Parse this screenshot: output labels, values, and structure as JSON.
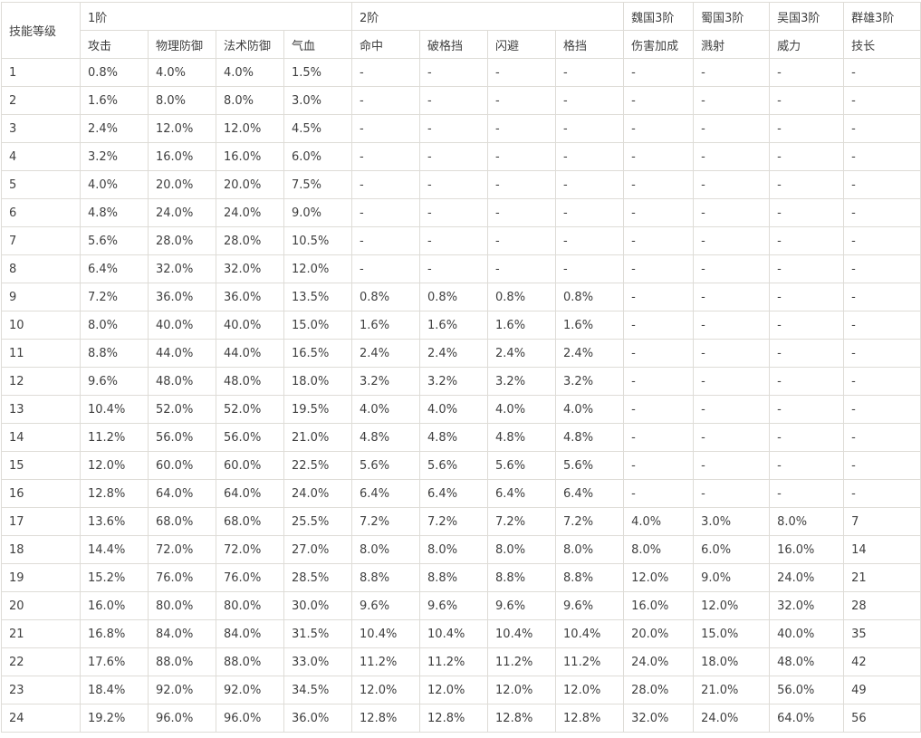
{
  "chart_data": {
    "type": "table",
    "corner_header": "技能等级",
    "column_groups": [
      {
        "label": "1阶",
        "span": 4
      },
      {
        "label": "2阶",
        "span": 4
      },
      {
        "label": "魏国3阶",
        "span": 1
      },
      {
        "label": "蜀国3阶",
        "span": 1
      },
      {
        "label": "吴国3阶",
        "span": 1
      },
      {
        "label": "群雄3阶",
        "span": 1
      }
    ],
    "columns": [
      "攻击",
      "物理防御",
      "法术防御",
      "气血",
      "命中",
      "破格挡",
      "闪避",
      "格挡",
      "伤害加成",
      "溅射",
      "威力",
      "技长"
    ],
    "rows": [
      {
        "level": "1",
        "values": [
          "0.8%",
          "4.0%",
          "4.0%",
          "1.5%",
          "-",
          "-",
          "-",
          "-",
          "-",
          "-",
          "-",
          "-"
        ]
      },
      {
        "level": "2",
        "values": [
          "1.6%",
          "8.0%",
          "8.0%",
          "3.0%",
          "-",
          "-",
          "-",
          "-",
          "-",
          "-",
          "-",
          "-"
        ]
      },
      {
        "level": "3",
        "values": [
          "2.4%",
          "12.0%",
          "12.0%",
          "4.5%",
          "-",
          "-",
          "-",
          "-",
          "-",
          "-",
          "-",
          "-"
        ]
      },
      {
        "level": "4",
        "values": [
          "3.2%",
          "16.0%",
          "16.0%",
          "6.0%",
          "-",
          "-",
          "-",
          "-",
          "-",
          "-",
          "-",
          "-"
        ]
      },
      {
        "level": "5",
        "values": [
          "4.0%",
          "20.0%",
          "20.0%",
          "7.5%",
          "-",
          "-",
          "-",
          "-",
          "-",
          "-",
          "-",
          "-"
        ]
      },
      {
        "level": "6",
        "values": [
          "4.8%",
          "24.0%",
          "24.0%",
          "9.0%",
          "-",
          "-",
          "-",
          "-",
          "-",
          "-",
          "-",
          "-"
        ]
      },
      {
        "level": "7",
        "values": [
          "5.6%",
          "28.0%",
          "28.0%",
          "10.5%",
          "-",
          "-",
          "-",
          "-",
          "-",
          "-",
          "-",
          "-"
        ]
      },
      {
        "level": "8",
        "values": [
          "6.4%",
          "32.0%",
          "32.0%",
          "12.0%",
          "-",
          "-",
          "-",
          "-",
          "-",
          "-",
          "-",
          "-"
        ]
      },
      {
        "level": "9",
        "values": [
          "7.2%",
          "36.0%",
          "36.0%",
          "13.5%",
          "0.8%",
          "0.8%",
          "0.8%",
          "0.8%",
          "-",
          "-",
          "-",
          "-"
        ]
      },
      {
        "level": "10",
        "values": [
          "8.0%",
          "40.0%",
          "40.0%",
          "15.0%",
          "1.6%",
          "1.6%",
          "1.6%",
          "1.6%",
          "-",
          "-",
          "-",
          "-"
        ]
      },
      {
        "level": "11",
        "values": [
          "8.8%",
          "44.0%",
          "44.0%",
          "16.5%",
          "2.4%",
          "2.4%",
          "2.4%",
          "2.4%",
          "-",
          "-",
          "-",
          "-"
        ]
      },
      {
        "level": "12",
        "values": [
          "9.6%",
          "48.0%",
          "48.0%",
          "18.0%",
          "3.2%",
          "3.2%",
          "3.2%",
          "3.2%",
          "-",
          "-",
          "-",
          "-"
        ]
      },
      {
        "level": "13",
        "values": [
          "10.4%",
          "52.0%",
          "52.0%",
          "19.5%",
          "4.0%",
          "4.0%",
          "4.0%",
          "4.0%",
          "-",
          "-",
          "-",
          "-"
        ]
      },
      {
        "level": "14",
        "values": [
          "11.2%",
          "56.0%",
          "56.0%",
          "21.0%",
          "4.8%",
          "4.8%",
          "4.8%",
          "4.8%",
          "-",
          "-",
          "-",
          "-"
        ]
      },
      {
        "level": "15",
        "values": [
          "12.0%",
          "60.0%",
          "60.0%",
          "22.5%",
          "5.6%",
          "5.6%",
          "5.6%",
          "5.6%",
          "-",
          "-",
          "-",
          "-"
        ]
      },
      {
        "level": "16",
        "values": [
          "12.8%",
          "64.0%",
          "64.0%",
          "24.0%",
          "6.4%",
          "6.4%",
          "6.4%",
          "6.4%",
          "-",
          "-",
          "-",
          "-"
        ]
      },
      {
        "level": "17",
        "values": [
          "13.6%",
          "68.0%",
          "68.0%",
          "25.5%",
          "7.2%",
          "7.2%",
          "7.2%",
          "7.2%",
          "4.0%",
          "3.0%",
          "8.0%",
          "7"
        ]
      },
      {
        "level": "18",
        "values": [
          "14.4%",
          "72.0%",
          "72.0%",
          "27.0%",
          "8.0%",
          "8.0%",
          "8.0%",
          "8.0%",
          "8.0%",
          "6.0%",
          "16.0%",
          "14"
        ]
      },
      {
        "level": "19",
        "values": [
          "15.2%",
          "76.0%",
          "76.0%",
          "28.5%",
          "8.8%",
          "8.8%",
          "8.8%",
          "8.8%",
          "12.0%",
          "9.0%",
          "24.0%",
          "21"
        ]
      },
      {
        "level": "20",
        "values": [
          "16.0%",
          "80.0%",
          "80.0%",
          "30.0%",
          "9.6%",
          "9.6%",
          "9.6%",
          "9.6%",
          "16.0%",
          "12.0%",
          "32.0%",
          "28"
        ]
      },
      {
        "level": "21",
        "values": [
          "16.8%",
          "84.0%",
          "84.0%",
          "31.5%",
          "10.4%",
          "10.4%",
          "10.4%",
          "10.4%",
          "20.0%",
          "15.0%",
          "40.0%",
          "35"
        ]
      },
      {
        "level": "22",
        "values": [
          "17.6%",
          "88.0%",
          "88.0%",
          "33.0%",
          "11.2%",
          "11.2%",
          "11.2%",
          "11.2%",
          "24.0%",
          "18.0%",
          "48.0%",
          "42"
        ]
      },
      {
        "level": "23",
        "values": [
          "18.4%",
          "92.0%",
          "92.0%",
          "34.5%",
          "12.0%",
          "12.0%",
          "12.0%",
          "12.0%",
          "28.0%",
          "21.0%",
          "56.0%",
          "49"
        ]
      },
      {
        "level": "24",
        "values": [
          "19.2%",
          "96.0%",
          "96.0%",
          "36.0%",
          "12.8%",
          "12.8%",
          "12.8%",
          "12.8%",
          "32.0%",
          "24.0%",
          "64.0%",
          "56"
        ]
      }
    ]
  },
  "colors": {
    "border": "#dedcd7",
    "text": "#3f3f3f",
    "background": "#ffffff"
  }
}
